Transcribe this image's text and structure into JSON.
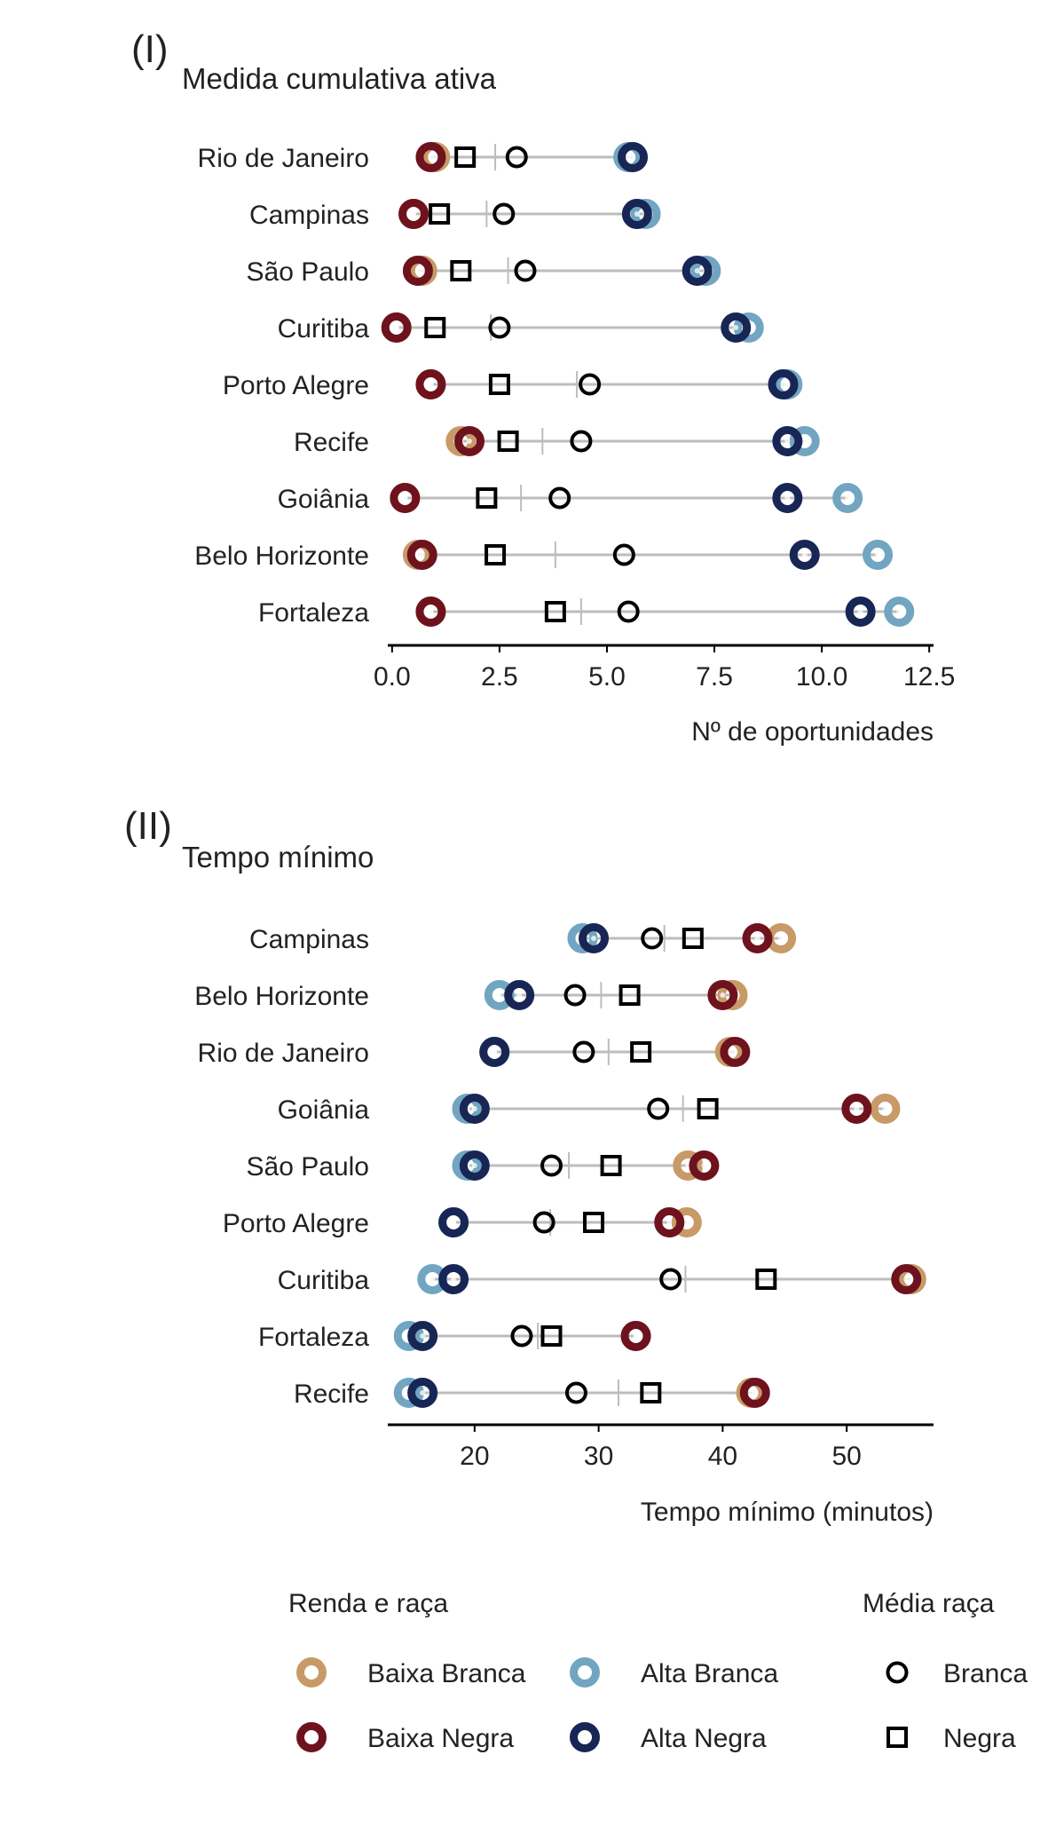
{
  "colors": {
    "Baixa Branca": "#c89a68",
    "Alta Branca": "#72a5c1",
    "Baixa Negra": "#6e121e",
    "Alta Negra": "#172655",
    "range_line": "#bdbdbd",
    "axis": "#000000"
  },
  "legend": {
    "income_race_title": "Renda e raça",
    "race_mean_title": "Média raça",
    "items": [
      "Baixa Branca",
      "Alta Branca",
      "Baixa Negra",
      "Alta Negra"
    ],
    "mean_items": [
      "Branca",
      "Negra"
    ]
  },
  "chart_data": [
    {
      "type": "dot-range",
      "panel": "(I)",
      "title": "Medida cumulativa ativa",
      "xlabel": "Nº de oportunidades",
      "xlim": [
        -0.1,
        12.6
      ],
      "xticks": [
        0,
        2.5,
        5,
        7.5,
        10,
        12.5
      ],
      "xtick_labels": [
        "0.0",
        "2.5",
        "5.0",
        "7.5",
        "10.0",
        "12.5"
      ],
      "categories": [
        "Rio de Janeiro",
        "Campinas",
        "São Paulo",
        "Curitiba",
        "Porto Alegre",
        "Recife",
        "Goiânia",
        "Belo Horizonte",
        "Fortaleza"
      ],
      "series": [
        {
          "name": "Baixa Branca",
          "values": [
            1.0,
            0.5,
            0.7,
            0.1,
            0.9,
            1.6,
            0.3,
            0.6,
            0.9
          ]
        },
        {
          "name": "Alta Branca",
          "values": [
            5.5,
            5.9,
            7.3,
            8.3,
            9.2,
            9.6,
            10.6,
            11.3,
            11.8
          ]
        },
        {
          "name": "Baixa Negra",
          "values": [
            0.9,
            0.5,
            0.6,
            0.1,
            0.9,
            1.8,
            0.3,
            0.7,
            0.9
          ]
        },
        {
          "name": "Alta Negra",
          "values": [
            5.6,
            5.7,
            7.1,
            8.0,
            9.1,
            9.2,
            9.2,
            9.6,
            10.9
          ]
        },
        {
          "name": "Branca",
          "values": [
            2.9,
            2.6,
            3.1,
            2.5,
            4.6,
            4.4,
            3.9,
            5.4,
            5.5
          ]
        },
        {
          "name": "Negra",
          "values": [
            1.7,
            1.1,
            1.6,
            1.0,
            2.5,
            2.7,
            2.2,
            2.4,
            3.8
          ]
        }
      ],
      "overall_mean": [
        2.4,
        2.2,
        2.7,
        2.3,
        4.3,
        3.5,
        3.0,
        3.8,
        4.4
      ]
    },
    {
      "type": "dot-range",
      "panel": "(II)",
      "title": "Tempo mínimo",
      "xlabel": "Tempo mínimo (minutos)",
      "xlim": [
        13.0,
        57.0
      ],
      "xticks": [
        20,
        30,
        40,
        50
      ],
      "xtick_labels": [
        "20",
        "30",
        "40",
        "50"
      ],
      "categories": [
        "Campinas",
        "Belo Horizonte",
        "Rio de Janeiro",
        "Goiânia",
        "São Paulo",
        "Porto Alegre",
        "Curitiba",
        "Fortaleza",
        "Recife"
      ],
      "series": [
        {
          "name": "Baixa Branca",
          "values": [
            44.7,
            40.8,
            40.6,
            53.1,
            37.2,
            37.1,
            55.2,
            33.0,
            42.3
          ]
        },
        {
          "name": "Alta Branca",
          "values": [
            28.7,
            22.0,
            21.6,
            19.4,
            19.4,
            18.3,
            16.6,
            14.7,
            14.7
          ]
        },
        {
          "name": "Baixa Negra",
          "values": [
            42.8,
            40.0,
            41.0,
            50.8,
            38.5,
            35.7,
            54.8,
            33.0,
            42.6
          ]
        },
        {
          "name": "Alta Negra",
          "values": [
            29.6,
            23.6,
            21.6,
            20.0,
            20.0,
            18.3,
            18.3,
            15.8,
            15.8
          ]
        },
        {
          "name": "Branca",
          "values": [
            34.3,
            28.1,
            28.8,
            34.8,
            26.2,
            25.6,
            35.8,
            23.8,
            28.2
          ]
        },
        {
          "name": "Negra",
          "values": [
            37.6,
            32.5,
            33.4,
            38.8,
            31.0,
            29.6,
            43.5,
            26.2,
            34.2
          ]
        }
      ],
      "overall_mean": [
        35.3,
        30.2,
        30.8,
        36.8,
        27.6,
        26.1,
        37.0,
        25.1,
        31.6
      ]
    }
  ]
}
